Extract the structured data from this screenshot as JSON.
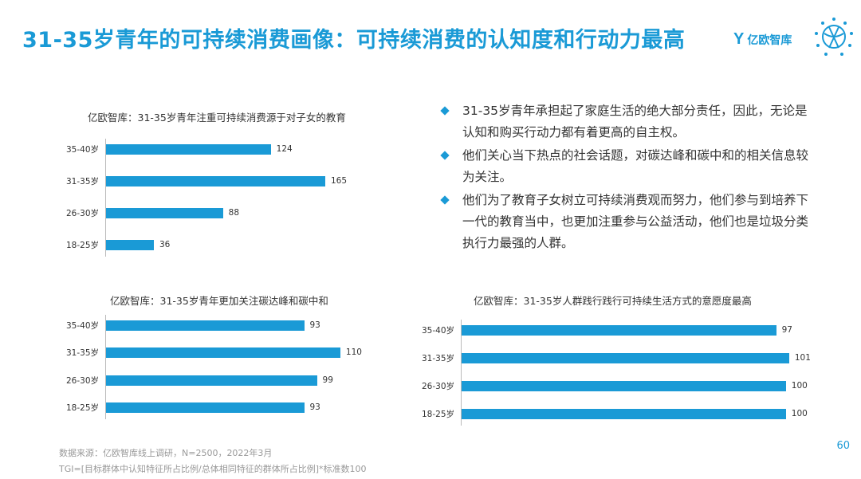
{
  "title": "31-35岁青年的可持续消费画像：可持续消费的认知度和行动力最高",
  "logo": {
    "mark": "Y",
    "text": "亿欧智库"
  },
  "bullets": [
    "31-35岁青年承担起了家庭生活的绝大部分责任，因此，无论是认知和购买行动力都有着更高的自主权。",
    "他们关心当下热点的社会话题，对碳达峰和碳中和的相关信息较为关注。",
    "他们为了教育子女树立可持续消费观而努力，他们参与到培养下一代的教育当中，也更加注重参与公益活动，他们也是垃圾分类执行力最强的人群。"
  ],
  "chart_data": [
    {
      "type": "bar",
      "orientation": "horizontal",
      "title": "亿欧智库：31-35岁青年注重可持续消费源于对子女的教育",
      "categories": [
        "35-40岁",
        "31-35岁",
        "26-30岁",
        "18-25岁"
      ],
      "values": [
        124,
        165,
        88,
        36
      ],
      "xlim": [
        0,
        180
      ]
    },
    {
      "type": "bar",
      "orientation": "horizontal",
      "title": "亿欧智库：31-35岁青年更加关注碳达峰和碳中和",
      "categories": [
        "35-40岁",
        "31-35岁",
        "26-30岁",
        "18-25岁"
      ],
      "values": [
        93,
        110,
        99,
        93
      ],
      "xlim": [
        0,
        122
      ]
    },
    {
      "type": "bar",
      "orientation": "horizontal",
      "title": "亿欧智库：31-35岁人群践行践行可持续生活方式的意愿度最高",
      "categories": [
        "35-40岁",
        "31-35岁",
        "26-30岁",
        "18-25岁"
      ],
      "values": [
        97,
        101,
        100,
        100
      ],
      "xlim": [
        0,
        103
      ]
    }
  ],
  "footer": {
    "source": "数据来源：亿欧智库线上调研，N=2500，2022年3月",
    "note": "TGI=[目标群体中认知特征所占比例/总体相同特征的群体所占比例]*标准数100"
  },
  "page_number": "60",
  "colors": {
    "accent": "#1a9ad6"
  }
}
